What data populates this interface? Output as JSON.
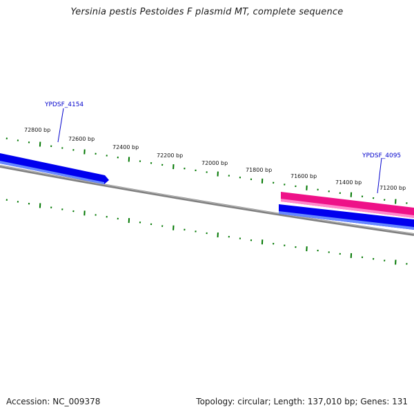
{
  "title": "Yersinia pestis Pestoides F plasmid MT, complete sequence",
  "footer": {
    "accession": "Accession: NC_009378",
    "summary": "Topology: circular; Length: 137,010 bp; Genes: 131"
  },
  "colors": {
    "backbone": "#808080",
    "tick": "#007700",
    "cds": "#0000ee",
    "cds_light": "#6688ff",
    "rna": "#ee1188",
    "rna_light": "#ff88cc",
    "gene_label": "#0000cc"
  },
  "bp_labels": [
    "72800 bp",
    "72600 bp",
    "72400 bp",
    "72200 bp",
    "72000 bp",
    "71800 bp",
    "71600 bp",
    "71400 bp",
    "71200 bp"
  ],
  "genes": [
    {
      "name": "YPDSF_4154",
      "strand": "plus",
      "feature": "cds"
    },
    {
      "name": "YPDSF_4095",
      "strand": "plus",
      "feature": "rna"
    },
    {
      "name": "",
      "strand": "minus",
      "feature": "cds"
    }
  ]
}
